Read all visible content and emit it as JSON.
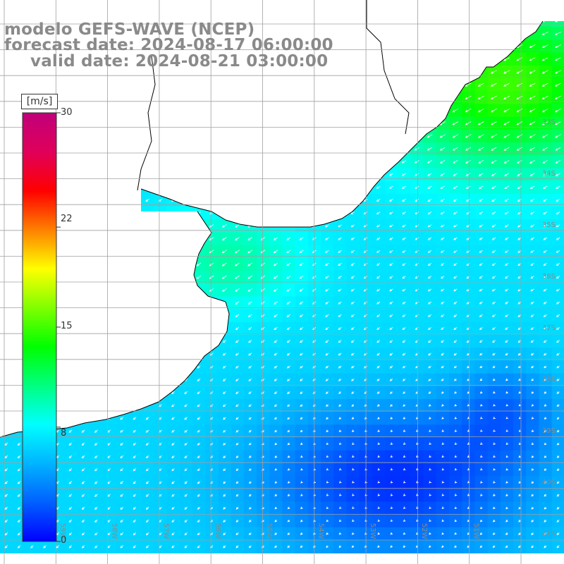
{
  "title": {
    "line1": "modelo GEFS-WAVE (NCEP)",
    "line2": "forecast date: 2024-08-17 06:00:00",
    "line3": "valid date: 2024-08-21 03:00:00"
  },
  "colorbar": {
    "unit": "[m/s]",
    "ticks": [
      "30",
      "22",
      "15",
      "8",
      "0"
    ],
    "tick_values": [
      30,
      22,
      15,
      8,
      0
    ],
    "range": [
      0,
      30
    ],
    "colors": [
      "#0000ff",
      "#0060ff",
      "#00b4ff",
      "#00ffff",
      "#00ff80",
      "#00ff00",
      "#80ff00",
      "#ffff00",
      "#ff8000",
      "#ff0000",
      "#e0005a",
      "#c0007a"
    ]
  },
  "map": {
    "lat_labels": [
      "33S",
      "34S",
      "35S",
      "36S",
      "37S",
      "38S",
      "39S",
      "40S",
      "41S"
    ],
    "lon_labels": [
      "59W",
      "58W",
      "57W",
      "56W",
      "55W",
      "54W",
      "53W",
      "52W",
      "51W"
    ],
    "wind_field": "southwesterly-to-northeasterly arrows, speed mostly 3-12 m/s, up to 14 m/s near 32S-33S",
    "land_color": "#ffffff",
    "coast_color": "#000000",
    "grid_color": "#a0a0a0"
  }
}
